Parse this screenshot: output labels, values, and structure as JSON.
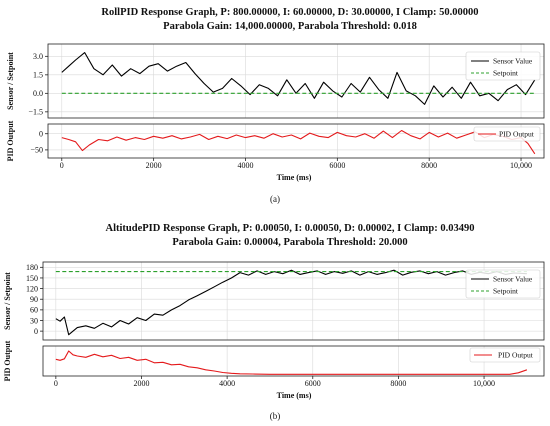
{
  "chart_data": [
    {
      "type": "line",
      "title_line1": "RollPID Response Graph, P: 800.00000, I: 60.00000, D: 30.00000, I Clamp: 50.00000",
      "title_line2": "Parabola Gain: 14,000.00000, Parabola Threshold: 0.018",
      "caption": "(a)",
      "xlabel": "Time (ms)",
      "xlim": [
        -300,
        10500
      ],
      "xticks": [
        0,
        2000,
        4000,
        6000,
        8000,
        10000
      ],
      "xtick_labels": [
        "0",
        "2000",
        "4000",
        "6000",
        "8000",
        "10,000"
      ],
      "grid": true,
      "top": {
        "ylabel": "Sensor / Setpoint",
        "ylim": [
          -2.0,
          4.0
        ],
        "yticks": [
          -1.5,
          0.0,
          1.5,
          3.0
        ],
        "ytick_labels": [
          "−1.5",
          "0.0",
          "1.5",
          "3.0"
        ],
        "legend_position": "top-right",
        "series": [
          {
            "name": "Sensor Value",
            "color": "#000000",
            "style": "solid",
            "x": [
              0,
              150,
              300,
              500,
              700,
              900,
              1100,
              1300,
              1500,
              1700,
              1900,
              2100,
              2300,
              2500,
              2700,
              2900,
              3100,
              3300,
              3500,
              3700,
              3900,
              4100,
              4300,
              4500,
              4700,
              4900,
              5100,
              5300,
              5500,
              5700,
              5900,
              6100,
              6300,
              6500,
              6700,
              6900,
              7100,
              7300,
              7500,
              7700,
              7900,
              8100,
              8300,
              8500,
              8700,
              8900,
              9100,
              9300,
              9500,
              9700,
              9900,
              10100,
              10300
            ],
            "y": [
              1.7,
              2.2,
              2.7,
              3.3,
              2.0,
              1.5,
              2.3,
              1.4,
              2.0,
              1.6,
              2.2,
              2.4,
              1.8,
              2.2,
              2.5,
              1.6,
              0.8,
              0.1,
              0.4,
              1.2,
              0.6,
              -0.1,
              0.7,
              0.4,
              -0.2,
              1.1,
              0.0,
              0.8,
              -0.4,
              0.9,
              0.2,
              -0.3,
              0.8,
              0.1,
              1.3,
              0.3,
              -0.4,
              1.7,
              0.2,
              -0.2,
              -0.9,
              0.6,
              -0.3,
              0.5,
              -0.4,
              0.9,
              -0.2,
              0.0,
              -0.6,
              0.3,
              0.7,
              -0.1,
              1.1
            ]
          },
          {
            "name": "Setpoint",
            "color": "#2ca02c",
            "style": "dashed",
            "x": [
              0,
              10300
            ],
            "y": [
              0.0,
              0.0
            ]
          }
        ]
      },
      "bottom": {
        "ylabel": "PID Output",
        "ylim": [
          -75,
          30
        ],
        "yticks": [
          -50,
          0
        ],
        "ytick_labels": [
          "−50",
          "0"
        ],
        "legend_position": "top-right",
        "series": [
          {
            "name": "PID Output",
            "color": "#e41a1c",
            "style": "solid",
            "x": [
              0,
              150,
              300,
              450,
              600,
              800,
              1000,
              1200,
              1400,
              1600,
              1800,
              2000,
              2200,
              2400,
              2600,
              2800,
              3000,
              3200,
              3400,
              3600,
              3800,
              4000,
              4200,
              4400,
              4600,
              4800,
              5000,
              5200,
              5400,
              5600,
              5800,
              6000,
              6200,
              6400,
              6600,
              6800,
              7000,
              7200,
              7400,
              7600,
              7800,
              8000,
              8200,
              8400,
              8600,
              8800,
              9000,
              9200,
              9400,
              9600,
              9800,
              10000,
              10150,
              10300
            ],
            "y": [
              -12,
              -18,
              -25,
              -52,
              -35,
              -18,
              -22,
              -10,
              -20,
              -12,
              -18,
              -8,
              -14,
              -6,
              -16,
              -10,
              -2,
              -18,
              -8,
              -15,
              -4,
              -12,
              -6,
              -14,
              0,
              -10,
              -4,
              -16,
              2,
              -8,
              -12,
              4,
              -6,
              -10,
              0,
              -14,
              8,
              -12,
              10,
              -6,
              -16,
              4,
              -10,
              2,
              -14,
              -4,
              6,
              -12,
              -2,
              -8,
              -18,
              -12,
              -30,
              -62
            ]
          }
        ]
      }
    },
    {
      "type": "line",
      "title_line1": "AltitudePID Response Graph, P: 0.00050, I: 0.00050, D: 0.00002, I Clamp: 0.03490",
      "title_line2": "Parabola Gain: 0.00004, Parabola Threshold: 20.000",
      "caption": "(b)",
      "xlabel": "Time (ms)",
      "xlim": [
        -300,
        11400
      ],
      "xticks": [
        0,
        2000,
        4000,
        6000,
        8000,
        10000
      ],
      "xtick_labels": [
        "0",
        "2000",
        "4000",
        "6000",
        "8000",
        "10,000"
      ],
      "grid": true,
      "top": {
        "ylabel": "Sensor / Setpoint",
        "ylim": [
          -25,
          195
        ],
        "yticks": [
          0,
          30,
          60,
          90,
          120,
          150,
          180
        ],
        "ytick_labels": [
          "0",
          "30",
          "60",
          "90",
          "120",
          "150",
          "180"
        ],
        "legend_position": "top-right",
        "series": [
          {
            "name": "Sensor Value",
            "color": "#000000",
            "style": "solid",
            "x": [
              0,
              100,
              200,
              300,
              500,
              700,
              900,
              1100,
              1300,
              1500,
              1700,
              1900,
              2100,
              2300,
              2500,
              2700,
              2900,
              3100,
              3300,
              3500,
              3700,
              3900,
              4100,
              4300,
              4500,
              4700,
              4900,
              5100,
              5300,
              5500,
              5700,
              5900,
              6100,
              6300,
              6500,
              6700,
              6900,
              7100,
              7300,
              7500,
              7700,
              7900,
              8100,
              8300,
              8500,
              8700,
              8900,
              9100,
              9300,
              9500,
              9700,
              9900,
              10100,
              10300,
              10500,
              10700,
              11000
            ],
            "y": [
              35,
              28,
              40,
              -10,
              10,
              15,
              8,
              22,
              12,
              30,
              20,
              38,
              30,
              48,
              45,
              60,
              72,
              88,
              100,
              112,
              125,
              138,
              150,
              165,
              158,
              170,
              160,
              168,
              162,
              172,
              160,
              165,
              170,
              160,
              168,
              163,
              170,
              158,
              168,
              160,
              165,
              172,
              158,
              166,
              170,
              162,
              168,
              158,
              165,
              170,
              160,
              166,
              162,
              168,
              160,
              164,
              162
            ]
          },
          {
            "name": "Setpoint",
            "color": "#2ca02c",
            "style": "dashed",
            "x": [
              0,
              11000
            ],
            "y": [
              168,
              168
            ]
          }
        ]
      },
      "bottom": {
        "ylabel": "PID Output",
        "ylim": [
          -5,
          115
        ],
        "yticks": [],
        "ytick_labels": [],
        "legend_position": "top-right",
        "series": [
          {
            "name": "PID Output",
            "color": "#e41a1c",
            "style": "solid",
            "x": [
              0,
              100,
              200,
              300,
              400,
              500,
              700,
              900,
              1100,
              1300,
              1500,
              1700,
              1900,
              2100,
              2300,
              2500,
              2700,
              2900,
              3100,
              3300,
              3500,
              3700,
              3900,
              4100,
              4300,
              4600,
              5000,
              6000,
              7000,
              8000,
              9000,
              10000,
              10600,
              10800,
              11000
            ],
            "y": [
              62,
              58,
              64,
              95,
              80,
              75,
              70,
              82,
              72,
              78,
              65,
              70,
              58,
              62,
              48,
              50,
              40,
              42,
              32,
              28,
              20,
              15,
              9,
              6,
              4,
              3,
              2,
              2,
              2,
              2,
              2,
              2,
              2,
              8,
              20
            ]
          }
        ]
      }
    }
  ]
}
